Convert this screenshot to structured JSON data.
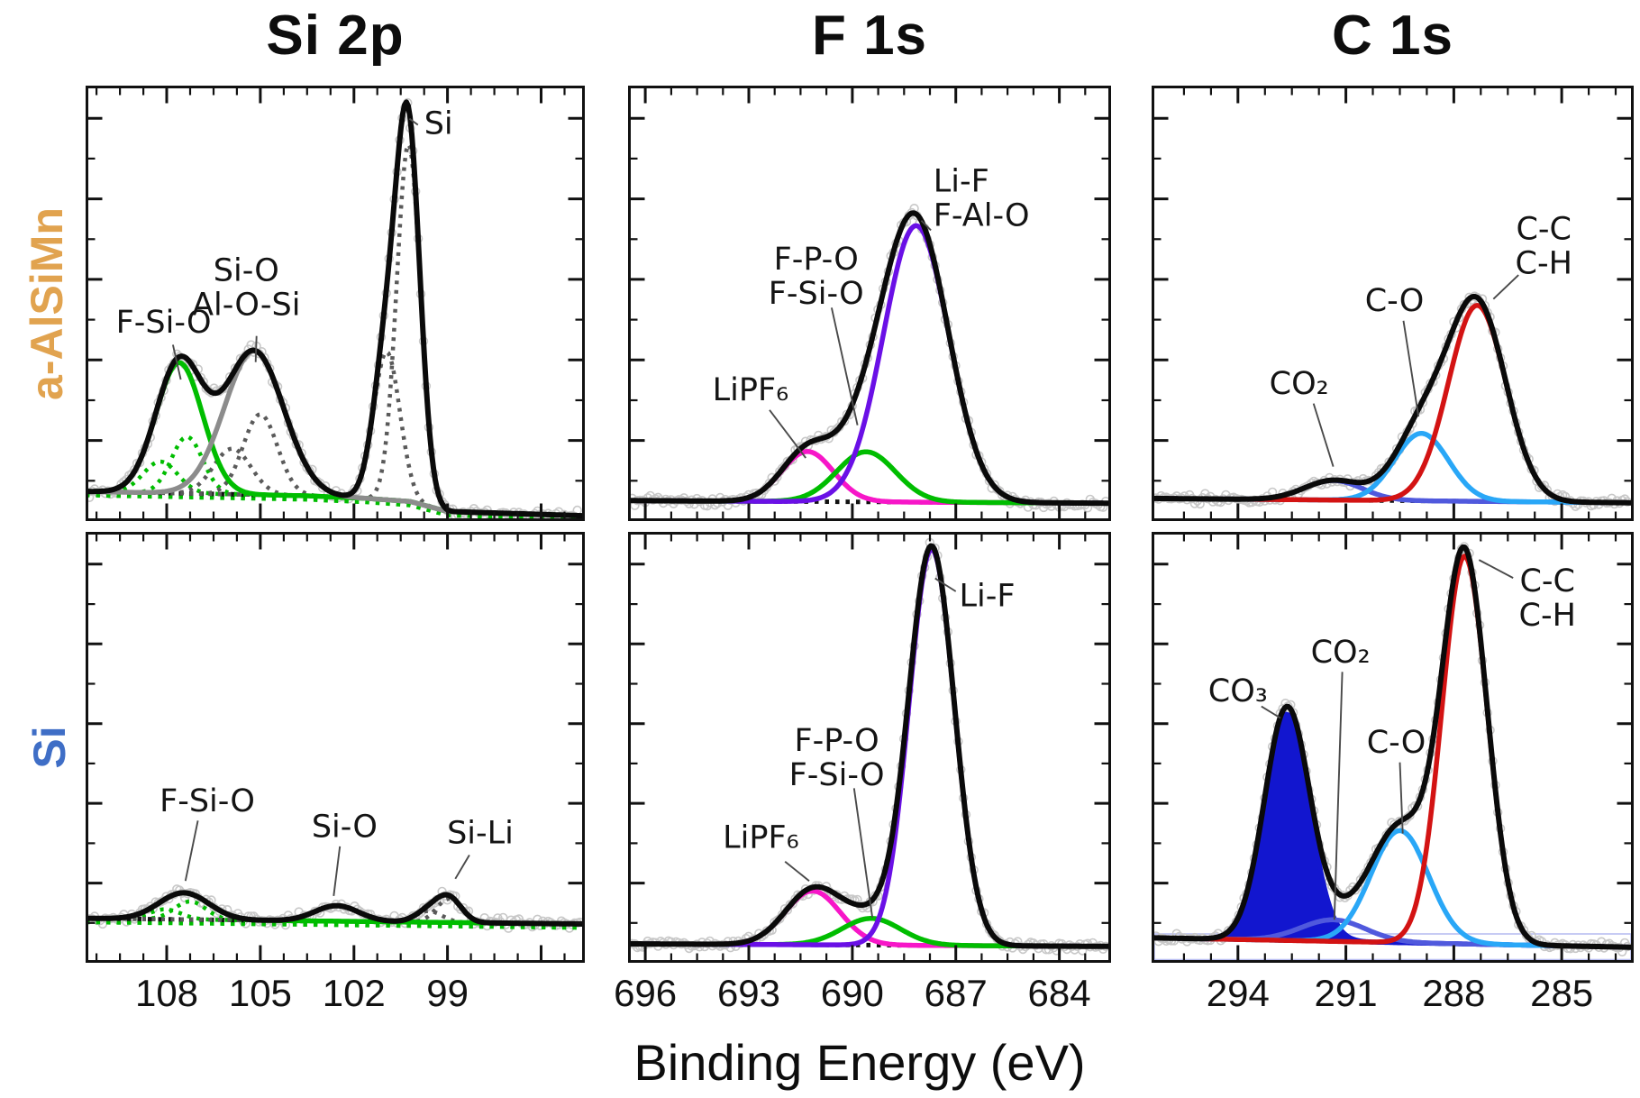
{
  "figure": {
    "column_titles": [
      "Si 2p",
      "F 1s",
      "C 1s"
    ],
    "row_labels": [
      {
        "text": "a-AlSiMn",
        "color": "#e1a34f"
      },
      {
        "text": "Si",
        "color": "#3f6ec6"
      }
    ],
    "x_axis_title": "Binding Energy (eV)",
    "colors": {
      "envelope": "#0a0a0a",
      "raw_data_circles": "#c8c8c8",
      "component_grey_dotted": "#5a5a5a",
      "component_grey_solid": "#8c8c8c",
      "green": "#00bd00",
      "magenta": "#f716c8",
      "purple": "#6a10e6",
      "red": "#d31313",
      "light_blue": "#29a7f7",
      "co2_blue": "#5059dd",
      "co3_fill": "#1216cf",
      "leader_line": "#4a4a4a",
      "baseline_dotted": "#111111"
    }
  },
  "chart_data": [
    {
      "id": "si2p-a-alsimn",
      "type": "line",
      "row_label": "a-AlSiMn",
      "column_title": "Si 2p",
      "grid": {
        "row": 0,
        "col": 0
      },
      "x_axis": {
        "range": [
          110.6,
          94.6
        ],
        "tick_labels": [
          108,
          105,
          102,
          99
        ],
        "minor_step": 0.75,
        "major_step": 3,
        "unit": "eV",
        "reversed": true
      },
      "y_axis": {
        "label": "",
        "ticks_unlabeled": true
      },
      "baseline": [
        [
          110.6,
          0.068
        ],
        [
          103.5,
          0.058
        ],
        [
          101.6,
          0.052
        ],
        [
          100.2,
          0.045
        ],
        [
          99.0,
          0.022
        ],
        [
          94.6,
          0.012
        ]
      ],
      "green_baseline": true,
      "data_points": {
        "step_ev": 0.085,
        "noise": 0.013,
        "style": "open-circles-following-envelope"
      },
      "components": [
        {
          "name": "F-Si-O total",
          "center": 107.6,
          "height": 0.3,
          "sigma": 0.75,
          "color": "#00bd00",
          "style": "solid",
          "env": true
        },
        {
          "name": "F-Si-O comp 1",
          "center": 107.35,
          "height": 0.13,
          "sigma": 0.5,
          "color": "#00bd00",
          "style": "dotted"
        },
        {
          "name": "F-Si-O comp 2",
          "center": 108.2,
          "height": 0.072,
          "sigma": 0.55,
          "color": "#00bd00",
          "style": "dotted"
        },
        {
          "name": "Si-O / Al-O-Si total",
          "center": 105.2,
          "height": 0.33,
          "sigma": 0.95,
          "color": "#8c8c8c",
          "style": "solid",
          "env": true
        },
        {
          "name": "Si-O comp 1",
          "center": 105.0,
          "height": 0.185,
          "sigma": 0.55,
          "color": "#5a5a5a",
          "style": "dotted"
        },
        {
          "name": "Si-O comp 2",
          "center": 105.9,
          "height": 0.105,
          "sigma": 0.6,
          "color": "#5a5a5a",
          "style": "dotted"
        },
        {
          "name": "Si 2p3/2",
          "center": 100.25,
          "height": 0.82,
          "sigma": 0.38,
          "color": "#5a5a5a",
          "style": "dotted",
          "env": true
        },
        {
          "name": "Si 2p1/2",
          "center": 100.95,
          "height": 0.34,
          "sigma": 0.42,
          "color": "#5a5a5a",
          "style": "dotted",
          "env": true
        }
      ],
      "annotations": [
        {
          "lines": [
            "Si"
          ],
          "x": 99.75,
          "y": 0.912,
          "anchor": "start",
          "leader": [
            [
              99.95,
              0.91
            ],
            [
              100.22,
              0.924
            ]
          ]
        },
        {
          "lines": [
            "Si-O",
            "Al-O-Si"
          ],
          "x": 105.45,
          "y": 0.575,
          "anchor": "middle",
          "leader": [
            [
              105.12,
              0.425
            ],
            [
              105.15,
              0.365
            ]
          ]
        },
        {
          "lines": [
            "F-Si-O"
          ],
          "x": 108.1,
          "y": 0.455,
          "anchor": "middle",
          "leader": [
            [
              107.8,
              0.405
            ],
            [
              107.55,
              0.325
            ]
          ]
        }
      ]
    },
    {
      "id": "f1s-a-alsimn",
      "type": "line",
      "row_label": "a-AlSiMn",
      "column_title": "F 1s",
      "grid": {
        "row": 0,
        "col": 1
      },
      "x_axis": {
        "range": [
          696.5,
          682.5
        ],
        "tick_labels": [
          696,
          693,
          690,
          687,
          684
        ],
        "minor_step": 0.75,
        "major_step": 3,
        "unit": "eV",
        "reversed": true
      },
      "y_axis": {
        "label": "",
        "ticks_unlabeled": true
      },
      "baseline": [
        [
          696.5,
          0.047
        ],
        [
          682.5,
          0.041
        ]
      ],
      "green_baseline": false,
      "data_points": {
        "step_ev": 0.075,
        "noise": 0.012,
        "style": "open-circles-following-envelope"
      },
      "components": [
        {
          "name": "LiPF6",
          "center": 691.3,
          "height": 0.115,
          "sigma": 0.75,
          "color": "#f716c8",
          "style": "solid",
          "env": true
        },
        {
          "name": "F-P-O / F-Si-O",
          "center": 689.6,
          "height": 0.115,
          "sigma": 0.85,
          "color": "#00bd00",
          "style": "solid",
          "env": true
        },
        {
          "name": "Li-F / F-Al-O",
          "center": 688.15,
          "height": 0.635,
          "sigma": 0.95,
          "color": "#6a10e6",
          "style": "solid",
          "env": true
        }
      ],
      "annotations": [
        {
          "lines": [
            "Li-F",
            "F-Al-O"
          ],
          "x": 687.65,
          "y": 0.78,
          "anchor": "start",
          "leader": [
            [
              687.72,
              0.668
            ],
            [
              688.0,
              0.69
            ]
          ]
        },
        {
          "lines": [
            "F-P-O",
            "F-Si-O"
          ],
          "x": 691.05,
          "y": 0.6,
          "anchor": "middle",
          "leader": [
            [
              690.6,
              0.49
            ],
            [
              689.85,
              0.22
            ]
          ]
        },
        {
          "lines": [
            "LiPF₆"
          ],
          "x": 692.95,
          "y": 0.3,
          "anchor": "middle",
          "leader": [
            [
              692.4,
              0.255
            ],
            [
              691.35,
              0.145
            ]
          ]
        }
      ]
    },
    {
      "id": "c1s-a-alsimn",
      "type": "line",
      "row_label": "a-AlSiMn",
      "column_title": "C 1s",
      "grid": {
        "row": 0,
        "col": 2
      },
      "x_axis": {
        "range": [
          296.4,
          283.0
        ],
        "tick_labels": [
          294,
          291,
          288,
          285
        ],
        "minor_step": 0.75,
        "major_step": 3,
        "unit": "eV",
        "reversed": true
      },
      "y_axis": {
        "label": "",
        "ticks_unlabeled": true
      },
      "baseline": [
        [
          296.4,
          0.052
        ],
        [
          283.0,
          0.042
        ]
      ],
      "green_baseline": false,
      "data_points": {
        "step_ev": 0.072,
        "noise": 0.012,
        "style": "open-circles-following-envelope"
      },
      "components": [
        {
          "name": "CO2",
          "center": 291.35,
          "height": 0.045,
          "sigma": 0.8,
          "color": "#5059dd",
          "style": "solid",
          "env": true
        },
        {
          "name": "C-O",
          "center": 288.9,
          "height": 0.155,
          "sigma": 0.75,
          "color": "#29a7f7",
          "style": "solid",
          "env": true
        },
        {
          "name": "C-C / C-H",
          "center": 287.35,
          "height": 0.45,
          "sigma": 0.8,
          "color": "#d31313",
          "style": "solid",
          "env": true
        }
      ],
      "annotations": [
        {
          "lines": [
            "C-C",
            "C-H"
          ],
          "x": 285.5,
          "y": 0.67,
          "anchor": "middle",
          "leader": [
            [
              286.2,
              0.565
            ],
            [
              286.9,
              0.51
            ]
          ]
        },
        {
          "lines": [
            "C-O"
          ],
          "x": 289.65,
          "y": 0.505,
          "anchor": "middle",
          "leader": [
            [
              289.4,
              0.46
            ],
            [
              288.98,
              0.24
            ]
          ]
        },
        {
          "lines": [
            "CO₂"
          ],
          "x": 292.3,
          "y": 0.315,
          "anchor": "middle",
          "leader": [
            [
              291.9,
              0.27
            ],
            [
              291.35,
              0.125
            ]
          ]
        }
      ]
    },
    {
      "id": "si2p-si",
      "type": "line",
      "row_label": "Si",
      "column_title": "Si 2p",
      "grid": {
        "row": 1,
        "col": 0
      },
      "x_axis": {
        "range": [
          110.6,
          94.6
        ],
        "tick_labels": [
          108,
          105,
          102,
          99
        ],
        "minor_step": 0.75,
        "major_step": 3,
        "unit": "eV",
        "reversed": true
      },
      "y_axis": {
        "label": "",
        "ticks_unlabeled": true
      },
      "baseline": [
        [
          110.6,
          0.103
        ],
        [
          94.6,
          0.09
        ]
      ],
      "green_baseline": true,
      "data_points": {
        "step_ev": 0.085,
        "noise": 0.013,
        "style": "open-circles-following-envelope"
      },
      "components": [
        {
          "name": "F-Si-O total",
          "center": 107.45,
          "height": 0.062,
          "sigma": 0.8,
          "color": "#00bd00",
          "style": "solid",
          "env": true
        },
        {
          "name": "F-Si-O comp 1",
          "center": 107.25,
          "height": 0.042,
          "sigma": 0.5,
          "color": "#00bd00",
          "style": "dotted"
        },
        {
          "name": "F-Si-O comp 2",
          "center": 108.05,
          "height": 0.023,
          "sigma": 0.5,
          "color": "#00bd00",
          "style": "dotted"
        },
        {
          "name": "Si-O",
          "center": 102.55,
          "height": 0.036,
          "sigma": 0.7,
          "color": "#5a5a5a",
          "style": "dotted",
          "env": true
        },
        {
          "name": "Si-Li comp 1",
          "center": 98.95,
          "height": 0.055,
          "sigma": 0.4,
          "color": "#5a5a5a",
          "style": "dotted",
          "env": true
        },
        {
          "name": "Si-Li comp 2",
          "center": 99.6,
          "height": 0.026,
          "sigma": 0.42,
          "color": "#5a5a5a",
          "style": "dotted",
          "env": true
        }
      ],
      "annotations": [
        {
          "lines": [
            "F-Si-O"
          ],
          "x": 106.7,
          "y": 0.375,
          "anchor": "middle",
          "leader": [
            [
              107.0,
              0.33
            ],
            [
              107.4,
              0.19
            ]
          ]
        },
        {
          "lines": [
            "Si-O"
          ],
          "x": 102.3,
          "y": 0.315,
          "anchor": "middle",
          "leader": [
            [
              102.45,
              0.27
            ],
            [
              102.65,
              0.155
            ]
          ]
        },
        {
          "lines": [
            "Si-Li"
          ],
          "x": 97.95,
          "y": 0.3,
          "anchor": "middle",
          "leader": [
            [
              98.3,
              0.25
            ],
            [
              98.75,
              0.195
            ]
          ]
        }
      ]
    },
    {
      "id": "f1s-si",
      "type": "line",
      "row_label": "Si",
      "column_title": "F 1s",
      "grid": {
        "row": 1,
        "col": 1
      },
      "x_axis": {
        "range": [
          696.5,
          682.5
        ],
        "tick_labels": [
          696,
          693,
          690,
          687,
          684
        ],
        "minor_step": 0.75,
        "major_step": 3,
        "unit": "eV",
        "reversed": true
      },
      "y_axis": {
        "label": "",
        "ticks_unlabeled": true
      },
      "baseline": [
        [
          696.5,
          0.044
        ],
        [
          682.5,
          0.038
        ]
      ],
      "green_baseline": false,
      "data_points": {
        "step_ev": 0.075,
        "noise": 0.011,
        "style": "open-circles-following-envelope"
      },
      "components": [
        {
          "name": "LiPF6",
          "center": 691.15,
          "height": 0.125,
          "sigma": 0.8,
          "color": "#f716c8",
          "style": "solid",
          "env": true
        },
        {
          "name": "F-P-O / F-Si-O",
          "center": 689.45,
          "height": 0.062,
          "sigma": 0.85,
          "color": "#00bd00",
          "style": "solid",
          "env": true
        },
        {
          "name": "Li-F",
          "center": 687.7,
          "height": 0.92,
          "sigma": 0.66,
          "color": "#6a10e6",
          "style": "solid",
          "env": true
        }
      ],
      "annotations": [
        {
          "lines": [
            "Li-F"
          ],
          "x": 686.9,
          "y": 0.85,
          "anchor": "start",
          "leader": [
            [
              687.0,
              0.862
            ],
            [
              687.6,
              0.892
            ]
          ]
        },
        {
          "lines": [
            "F-P-O",
            "F-Si-O"
          ],
          "x": 690.45,
          "y": 0.515,
          "anchor": "middle",
          "leader": [
            [
              689.95,
              0.405
            ],
            [
              689.42,
              0.105
            ]
          ]
        },
        {
          "lines": [
            "LiPF₆"
          ],
          "x": 692.65,
          "y": 0.29,
          "anchor": "middle",
          "leader": [
            [
              691.95,
              0.235
            ],
            [
              691.25,
              0.19
            ]
          ]
        }
      ]
    },
    {
      "id": "c1s-si",
      "type": "line",
      "row_label": "Si",
      "column_title": "C 1s",
      "grid": {
        "row": 1,
        "col": 2
      },
      "x_axis": {
        "range": [
          296.4,
          283.0
        ],
        "tick_labels": [
          294,
          291,
          288,
          285
        ],
        "minor_step": 0.75,
        "major_step": 3,
        "unit": "eV",
        "reversed": true
      },
      "y_axis": {
        "label": "",
        "ticks_unlabeled": true
      },
      "baseline": [
        [
          296.4,
          0.058
        ],
        [
          283.0,
          0.036
        ]
      ],
      "green_baseline": false,
      "lavender_box": true,
      "data_points": {
        "step_ev": 0.072,
        "noise": 0.012,
        "style": "open-circles-following-envelope"
      },
      "components": [
        {
          "name": "CO3",
          "center": 292.65,
          "height": 0.525,
          "sigma": 0.62,
          "color": "#1216cf",
          "style": "solid",
          "fill": "#1216cf",
          "env": true
        },
        {
          "name": "CO2",
          "center": 291.35,
          "height": 0.05,
          "sigma": 0.9,
          "color": "#5059dd",
          "style": "solid",
          "env": true
        },
        {
          "name": "C-O",
          "center": 289.5,
          "height": 0.26,
          "sigma": 0.8,
          "color": "#29a7f7",
          "style": "solid",
          "env": true
        },
        {
          "name": "C-C / C-H",
          "center": 287.7,
          "height": 0.9,
          "sigma": 0.63,
          "color": "#d31313",
          "style": "solid",
          "env": true
        }
      ],
      "annotations": [
        {
          "lines": [
            "C-C",
            "C-H"
          ],
          "x": 285.4,
          "y": 0.885,
          "anchor": "middle",
          "leader": [
            [
              287.3,
              0.935
            ],
            [
              286.35,
              0.893
            ]
          ]
        },
        {
          "lines": [
            "CO₂"
          ],
          "x": 291.15,
          "y": 0.72,
          "anchor": "middle",
          "leader": [
            [
              291.1,
              0.675
            ],
            [
              291.32,
              0.1
            ]
          ]
        },
        {
          "lines": [
            "CO₃"
          ],
          "x": 294.0,
          "y": 0.63,
          "anchor": "middle",
          "leader": [
            [
              293.35,
              0.595
            ],
            [
              292.82,
              0.568
            ]
          ]
        },
        {
          "lines": [
            "C-O"
          ],
          "x": 289.6,
          "y": 0.51,
          "anchor": "middle",
          "leader": [
            [
              289.5,
              0.465
            ],
            [
              289.42,
              0.3
            ]
          ]
        }
      ]
    }
  ]
}
